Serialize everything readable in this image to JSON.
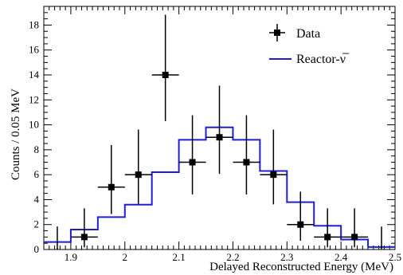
{
  "chart_data": {
    "type": "histogram-with-points",
    "xlabel": "Delayed Reconstructed Energy (MeV)",
    "ylabel": "Counts / 0.05 MeV",
    "xlim": [
      1.85,
      2.5
    ],
    "ylim": [
      0,
      19.5
    ],
    "x_ticks": [
      "1.9",
      "2",
      "2.1",
      "2.2",
      "2.3",
      "2.4",
      "2.5"
    ],
    "y_ticks": [
      "0",
      "2",
      "4",
      "6",
      "8",
      "10",
      "12",
      "14",
      "16",
      "18"
    ],
    "legend_position": "top-right",
    "series": [
      {
        "name": "Data",
        "kind": "points-with-error-bars",
        "color": "#000000",
        "x": [
          1.875,
          1.925,
          1.975,
          2.025,
          2.075,
          2.125,
          2.175,
          2.225,
          2.275,
          2.325,
          2.375,
          2.425,
          2.475
        ],
        "y": [
          0,
          1,
          5,
          6,
          14,
          7,
          9,
          7,
          6,
          2,
          1,
          1,
          0
        ],
        "yerr_low": [
          0,
          0.83,
          2.16,
          2.38,
          3.7,
          2.58,
          2.94,
          2.58,
          2.38,
          1.29,
          0.83,
          0.83,
          0
        ],
        "yerr_high": [
          1.84,
          2.3,
          3.38,
          3.62,
          4.83,
          3.77,
          4.14,
          3.77,
          3.62,
          2.64,
          2.3,
          2.3,
          1.84
        ],
        "xerr": 0.025
      },
      {
        "name": "Reactor-ν̅",
        "kind": "step",
        "color": "#1f1fd6",
        "bin_edges": [
          1.85,
          1.875,
          1.9,
          1.925,
          1.95,
          1.975,
          2.0,
          2.025,
          2.05,
          2.075,
          2.1,
          2.125,
          2.15,
          2.175,
          2.2,
          2.225,
          2.25,
          2.275,
          2.3,
          2.325,
          2.35,
          2.375,
          2.4,
          2.425,
          2.45,
          2.475,
          2.5
        ],
        "values": [
          0.6,
          0.6,
          1.6,
          1.6,
          2.6,
          2.6,
          3.6,
          3.6,
          6.2,
          6.2,
          8.8,
          8.8,
          9.8,
          9.8,
          8.8,
          8.8,
          6.3,
          6.3,
          3.8,
          3.8,
          1.9,
          1.9,
          0.8,
          0.8,
          0.2,
          0.2
        ]
      }
    ]
  }
}
